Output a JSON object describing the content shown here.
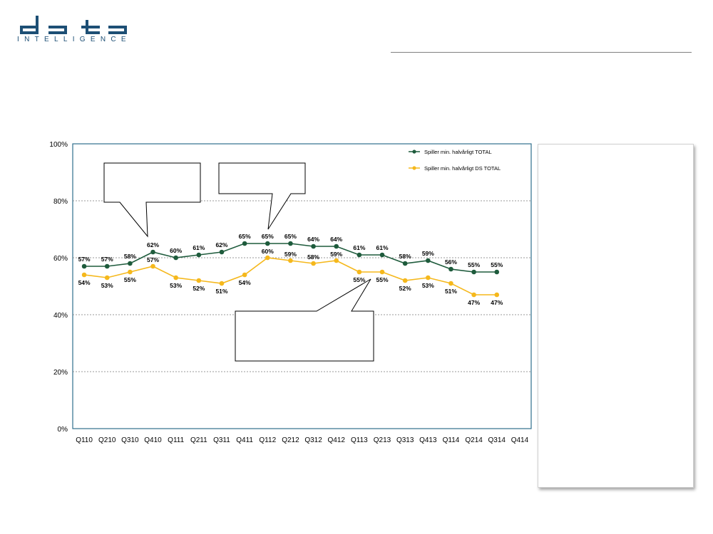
{
  "logo": {
    "text": "data",
    "wordmark": "INTELLIGENCE",
    "color": "#1d4f75"
  },
  "chart_data": {
    "type": "line",
    "categories": [
      "Q110",
      "Q210",
      "Q310",
      "Q410",
      "Q111",
      "Q211",
      "Q311",
      "Q411",
      "Q112",
      "Q212",
      "Q312",
      "Q412",
      "Q113",
      "Q213",
      "Q313",
      "Q413",
      "Q114",
      "Q214",
      "Q314",
      "Q414"
    ],
    "series": [
      {
        "name": "Spiller min. halvårligt TOTAL",
        "color": "#1e5b3c",
        "values": [
          57,
          57,
          58,
          62,
          60,
          61,
          62,
          65,
          65,
          65,
          64,
          64,
          61,
          61,
          58,
          59,
          56,
          55,
          55,
          null
        ],
        "labels": [
          "57%",
          "57%",
          "58%",
          "62%",
          "60%",
          "61%",
          "62%",
          "65%",
          "65%",
          "65%",
          "64%",
          "64%",
          "61%",
          "61%",
          "58%",
          "59%",
          "56%",
          "55%",
          "55%",
          ""
        ]
      },
      {
        "name": "Spiller min. halvårligt DS TOTAL",
        "color": "#f5b81c",
        "values": [
          54,
          53,
          55,
          57,
          53,
          52,
          51,
          54,
          60,
          59,
          58,
          59,
          55,
          55,
          52,
          53,
          51,
          47,
          47,
          null
        ],
        "labels": [
          "54%",
          "53%",
          "55%",
          "57%",
          "53%",
          "52%",
          "51%",
          "54%",
          "60%",
          "59%",
          "58%",
          "59%",
          "55%",
          "55%",
          "52%",
          "53%",
          "51%",
          "47%",
          "47%",
          ""
        ]
      }
    ],
    "yticks": [
      "0%",
      "20%",
      "40%",
      "60%",
      "80%",
      "100%"
    ],
    "ylim": [
      0,
      100
    ],
    "grid": true,
    "legend": "top-right"
  }
}
